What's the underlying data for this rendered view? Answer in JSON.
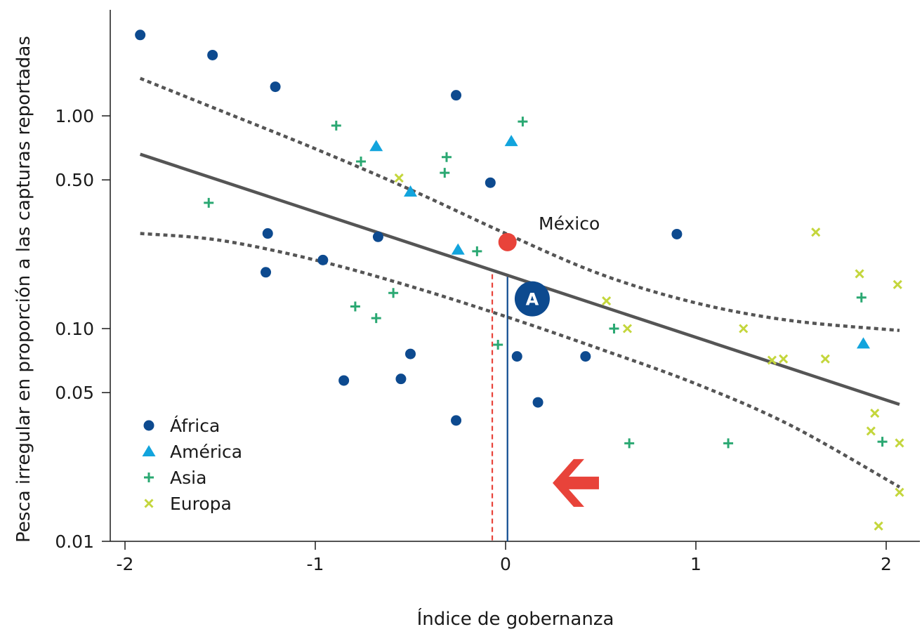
{
  "chart_data": {
    "type": "scatter",
    "title": "",
    "xlabel": "Índice de gobernanza",
    "ylabel": "Pesca irregular en proporción a las capturas reportadas",
    "xlim": [
      -2.08,
      2.16
    ],
    "ylim": [
      0.0087,
      3.0
    ],
    "y_scale": "log",
    "x_ticks": [
      {
        "value": -2,
        "label": "-2"
      },
      {
        "value": -1,
        "label": "-1"
      },
      {
        "value": 0,
        "label": "0"
      },
      {
        "value": 1,
        "label": "1"
      },
      {
        "value": 2,
        "label": "2"
      }
    ],
    "y_ticks": [
      {
        "value": 1.0,
        "label": "1.00"
      },
      {
        "value": 0.5,
        "label": "0.50"
      },
      {
        "value": 0.1,
        "label": "0.10"
      },
      {
        "value": 0.05,
        "label": "0.05"
      },
      {
        "value": 0.01,
        "label": "0.01"
      }
    ],
    "grid": false,
    "legend_position": "bottom-left",
    "series": [
      {
        "name": "África",
        "marker": "circle",
        "color": "#0d4a8f",
        "points": [
          {
            "x": -1.92,
            "y": 2.4
          },
          {
            "x": -1.54,
            "y": 1.93
          },
          {
            "x": -1.21,
            "y": 1.37
          },
          {
            "x": -0.26,
            "y": 1.25
          },
          {
            "x": -0.08,
            "y": 0.485
          },
          {
            "x": -1.25,
            "y": 0.28
          },
          {
            "x": -0.67,
            "y": 0.27
          },
          {
            "x": 0.9,
            "y": 0.278
          },
          {
            "x": -0.96,
            "y": 0.21
          },
          {
            "x": -1.26,
            "y": 0.184
          },
          {
            "x": -0.5,
            "y": 0.076
          },
          {
            "x": 0.06,
            "y": 0.074
          },
          {
            "x": 0.42,
            "y": 0.074
          },
          {
            "x": -0.85,
            "y": 0.057
          },
          {
            "x": -0.55,
            "y": 0.058
          },
          {
            "x": 0.17,
            "y": 0.045
          },
          {
            "x": -0.26,
            "y": 0.037
          }
        ]
      },
      {
        "name": "América",
        "marker": "triangle",
        "color": "#12a4dd",
        "points": [
          {
            "x": -0.68,
            "y": 0.72
          },
          {
            "x": 0.03,
            "y": 0.76
          },
          {
            "x": -0.5,
            "y": 0.44
          },
          {
            "x": -0.25,
            "y": 0.235
          },
          {
            "x": 1.88,
            "y": 0.085
          }
        ]
      },
      {
        "name": "Asia",
        "marker": "plus",
        "color": "#2aa872",
        "points": [
          {
            "x": -0.89,
            "y": 0.9
          },
          {
            "x": 0.09,
            "y": 0.94
          },
          {
            "x": -0.76,
            "y": 0.61
          },
          {
            "x": -0.31,
            "y": 0.64
          },
          {
            "x": -0.32,
            "y": 0.54
          },
          {
            "x": -1.56,
            "y": 0.39
          },
          {
            "x": -0.15,
            "y": 0.231
          },
          {
            "x": -0.59,
            "y": 0.147
          },
          {
            "x": -0.79,
            "y": 0.127
          },
          {
            "x": -0.68,
            "y": 0.112
          },
          {
            "x": 1.87,
            "y": 0.14
          },
          {
            "x": 0.57,
            "y": 0.1
          },
          {
            "x": -0.04,
            "y": 0.084
          },
          {
            "x": 0.65,
            "y": 0.0289
          },
          {
            "x": 1.17,
            "y": 0.0289
          },
          {
            "x": 1.98,
            "y": 0.0294
          }
        ]
      },
      {
        "name": "Europa",
        "marker": "x",
        "color": "#c4d63c",
        "points": [
          {
            "x": -0.56,
            "y": 0.51
          },
          {
            "x": 1.63,
            "y": 0.284
          },
          {
            "x": 1.86,
            "y": 0.181
          },
          {
            "x": 2.06,
            "y": 0.161
          },
          {
            "x": 0.53,
            "y": 0.135
          },
          {
            "x": 0.64,
            "y": 0.1
          },
          {
            "x": 1.25,
            "y": 0.1
          },
          {
            "x": 1.4,
            "y": 0.071
          },
          {
            "x": 1.46,
            "y": 0.072
          },
          {
            "x": 1.68,
            "y": 0.072
          },
          {
            "x": 1.94,
            "y": 0.04
          },
          {
            "x": 1.92,
            "y": 0.033
          },
          {
            "x": 2.07,
            "y": 0.029
          },
          {
            "x": 2.07,
            "y": 0.017
          },
          {
            "x": 1.96,
            "y": 0.0118
          }
        ]
      }
    ],
    "fit_line": {
      "x": [
        -1.92,
        2.07
      ],
      "y": [
        0.66,
        0.044
      ],
      "color": "#555555"
    },
    "confidence_upper": {
      "x": [
        -1.92,
        -1.5,
        -1.0,
        -0.5,
        0.0,
        0.5,
        1.0,
        1.5,
        2.07
      ],
      "y": [
        1.5,
        1.06,
        0.7,
        0.45,
        0.28,
        0.18,
        0.132,
        0.109,
        0.098
      ],
      "color": "#555555"
    },
    "confidence_lower": {
      "x": [
        -1.92,
        -1.5,
        -1.0,
        -0.5,
        0.0,
        0.5,
        1.0,
        1.5,
        2.07
      ],
      "y": [
        0.28,
        0.26,
        0.21,
        0.158,
        0.114,
        0.08,
        0.055,
        0.035,
        0.018
      ],
      "color": "#555555"
    },
    "highlight_point": {
      "label": "México",
      "x": 0.01,
      "y": 0.255,
      "color": "#e8433a"
    },
    "reference_lines": [
      {
        "x": 0.01,
        "y_top": 0.18,
        "color": "#0d4a8f",
        "style": "solid"
      },
      {
        "x": -0.07,
        "y_top": 0.18,
        "color": "#e8433a",
        "style": "dashed"
      }
    ],
    "badge": {
      "label": "A",
      "x": 0.14,
      "y": 0.138,
      "color": "#0d4a8f"
    },
    "arrow": {
      "x": 0.38,
      "y": 0.0188,
      "direction": "left",
      "color": "#e8433a"
    }
  }
}
